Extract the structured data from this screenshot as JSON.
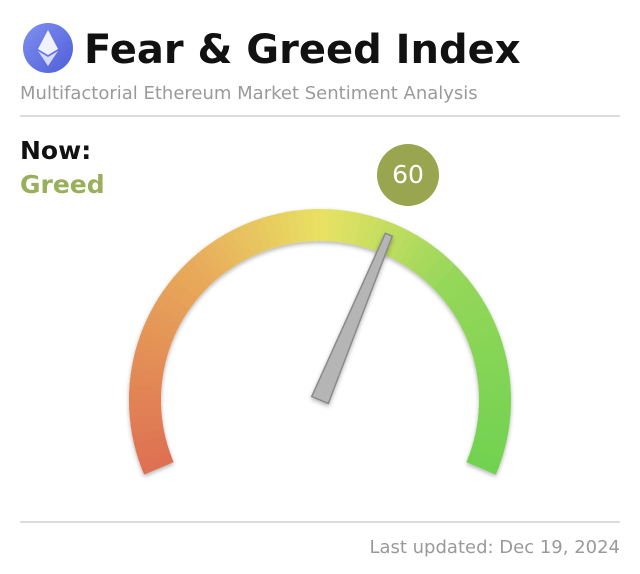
{
  "chart_data": {
    "type": "gauge",
    "title": "Fear & Greed Index",
    "subtitle": "Multifactorial Ethereum Market Sentiment Analysis",
    "now_label": "Now:",
    "status": "Greed",
    "value": 60,
    "ylim": [
      0,
      100
    ],
    "color": "#9aa550",
    "footer": "Last updated: Dec 19, 2024"
  }
}
